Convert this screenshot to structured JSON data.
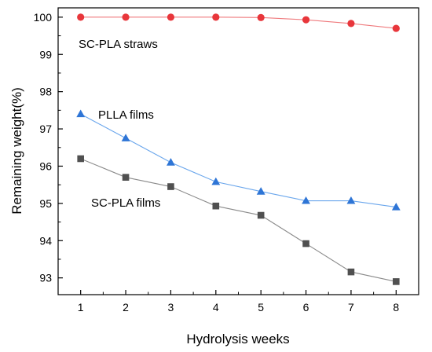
{
  "chart_data": {
    "type": "line",
    "xlabel": "Hydrolysis weeks",
    "ylabel": "Remaining weight(%)",
    "x": [
      1,
      2,
      3,
      4,
      5,
      6,
      7,
      8
    ],
    "xlim": [
      0.5,
      8.5
    ],
    "ylim": [
      92.55,
      100.25
    ],
    "y_ticks": [
      93,
      94,
      95,
      96,
      97,
      98,
      99,
      100
    ],
    "x_ticks": [
      1,
      2,
      3,
      4,
      5,
      6,
      7,
      8
    ],
    "grid": false,
    "legend": "none (series labeled inline)",
    "series": [
      {
        "name": "SC-PLA straws",
        "marker": "circle",
        "marker_color": "#e8363b",
        "line_color": "#ef7a7d",
        "values": [
          100.0,
          100.0,
          100.0,
          100.0,
          99.99,
          99.93,
          99.83,
          99.7
        ]
      },
      {
        "name": "PLLA films",
        "marker": "triangle",
        "marker_color": "#2e75d6",
        "line_color": "#6aa6ec",
        "values": [
          97.4,
          96.75,
          96.1,
          95.58,
          95.32,
          95.07,
          95.07,
          94.9
        ]
      },
      {
        "name": "SC-PLA films",
        "marker": "square",
        "marker_color": "#505050",
        "line_color": "#8a8a8a",
        "values": [
          96.2,
          95.7,
          95.45,
          94.93,
          94.68,
          93.92,
          93.16,
          92.9
        ]
      }
    ]
  }
}
